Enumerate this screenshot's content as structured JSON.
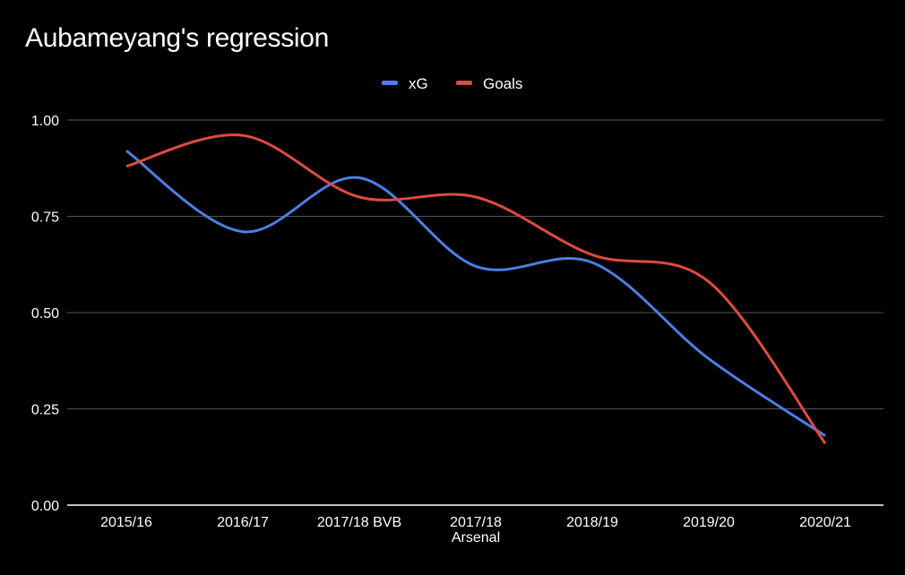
{
  "chart_data": {
    "type": "line",
    "title": "Aubameyang's regression",
    "categories": [
      [
        "2015/16"
      ],
      [
        "2016/17"
      ],
      [
        "2017/18 BVB"
      ],
      [
        "2017/18",
        "Arsenal"
      ],
      [
        "2018/19"
      ],
      [
        "2019/20"
      ],
      [
        "2020/21"
      ]
    ],
    "series": [
      {
        "name": "xG",
        "color": "#4a7fe6",
        "values": [
          0.92,
          0.71,
          0.85,
          0.62,
          0.63,
          0.38,
          0.18
        ]
      },
      {
        "name": "Goals",
        "color": "#e04a3f",
        "values": [
          0.88,
          0.96,
          0.8,
          0.8,
          0.65,
          0.58,
          0.16
        ]
      }
    ],
    "yticks": [
      "0.00",
      "0.25",
      "0.50",
      "0.75",
      "1.00"
    ],
    "ylim": [
      0,
      1
    ],
    "legend_position": "top-center",
    "grid": true,
    "background": "#000000",
    "gridline_color": "#555555",
    "axis_color": "#ffffff",
    "text_color": "#ffffff"
  }
}
